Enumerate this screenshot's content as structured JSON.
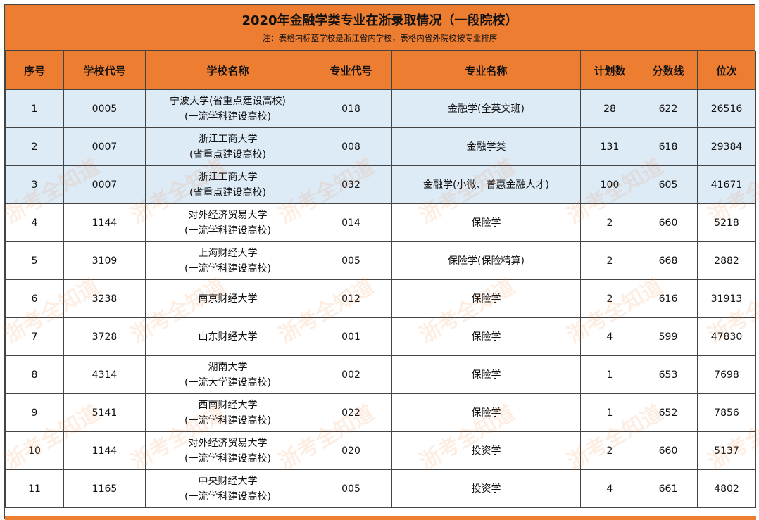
{
  "title": "2020年金融学类专业在浙录取情况（一段院校）",
  "subtitle": "注：表格内标蓝学校是浙江省内学校，表格内省外院校按专业排序",
  "columns": [
    "序号",
    "学校代号",
    "学校名称",
    "专业代号",
    "专业名称",
    "计划数",
    "分数线",
    "位次"
  ],
  "rows": [
    {
      "no": "1",
      "school_code": "0005",
      "school_name": [
        "宁波大学(省重点建设高校)",
        "(一流学科建设高校)"
      ],
      "major_code": "018",
      "major_name": "金融学(全英文班)",
      "plan": "28",
      "score": "622",
      "rank": "26516",
      "in_province": true
    },
    {
      "no": "2",
      "school_code": "0007",
      "school_name": [
        "浙江工商大学",
        "(省重点建设高校)"
      ],
      "major_code": "008",
      "major_name": "金融学类",
      "plan": "131",
      "score": "618",
      "rank": "29384",
      "in_province": true
    },
    {
      "no": "3",
      "school_code": "0007",
      "school_name": [
        "浙江工商大学",
        "(省重点建设高校)"
      ],
      "major_code": "032",
      "major_name": "金融学(小微、普惠金融人才)",
      "plan": "100",
      "score": "605",
      "rank": "41671",
      "in_province": true
    },
    {
      "no": "4",
      "school_code": "1144",
      "school_name": [
        "对外经济贸易大学",
        "(一流学科建设高校)"
      ],
      "major_code": "014",
      "major_name": "保险学",
      "plan": "2",
      "score": "660",
      "rank": "5218",
      "in_province": false
    },
    {
      "no": "5",
      "school_code": "3109",
      "school_name": [
        "上海财经大学",
        "(一流学科建设高校)"
      ],
      "major_code": "005",
      "major_name": "保险学(保险精算)",
      "plan": "2",
      "score": "668",
      "rank": "2882",
      "in_province": false
    },
    {
      "no": "6",
      "school_code": "3238",
      "school_name": [
        "南京财经大学"
      ],
      "major_code": "012",
      "major_name": "保险学",
      "plan": "2",
      "score": "616",
      "rank": "31913",
      "in_province": false
    },
    {
      "no": "7",
      "school_code": "3728",
      "school_name": [
        "山东财经大学"
      ],
      "major_code": "001",
      "major_name": "保险学",
      "plan": "4",
      "score": "599",
      "rank": "47830",
      "in_province": false
    },
    {
      "no": "8",
      "school_code": "4314",
      "school_name": [
        "湖南大学",
        "(一流大学建设高校)"
      ],
      "major_code": "002",
      "major_name": "保险学",
      "plan": "1",
      "score": "653",
      "rank": "7698",
      "in_province": false
    },
    {
      "no": "9",
      "school_code": "5141",
      "school_name": [
        "西南财经大学",
        "(一流学科建设高校)"
      ],
      "major_code": "022",
      "major_name": "保险学",
      "plan": "1",
      "score": "652",
      "rank": "7856",
      "in_province": false
    },
    {
      "no": "10",
      "school_code": "1144",
      "school_name": [
        "对外经济贸易大学",
        "(一流学科建设高校)"
      ],
      "major_code": "020",
      "major_name": "投资学",
      "plan": "2",
      "score": "660",
      "rank": "5137",
      "in_province": false
    },
    {
      "no": "11",
      "school_code": "1165",
      "school_name": [
        "中央财经大学",
        "(一流学科建设高校)"
      ],
      "major_code": "005",
      "major_name": "投资学",
      "plan": "4",
      "score": "661",
      "rank": "4802",
      "in_province": false
    }
  ],
  "watermark": "浙考全知道",
  "colors": {
    "header": "#ED7D31",
    "highlight_row": "#DDEBF7",
    "border": "#444444"
  }
}
